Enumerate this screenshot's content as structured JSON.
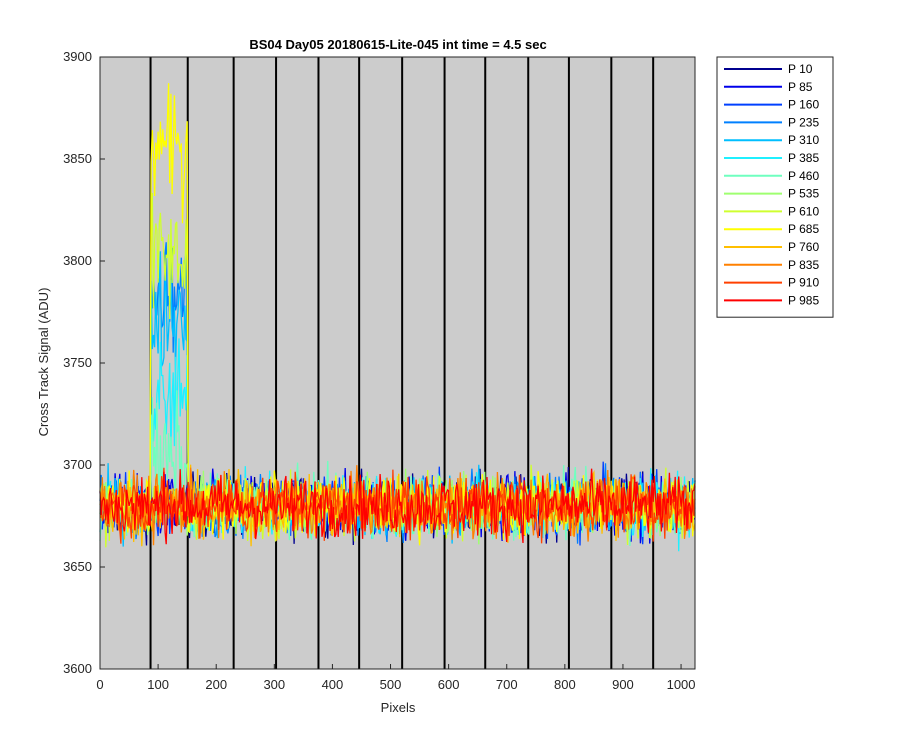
{
  "chart_data": {
    "type": "line",
    "title": "BS04 Day05 20180615-Lite-045 int time = 4.5 sec",
    "xlabel": "Pixels",
    "ylabel": "Cross Track Signal (ADU)",
    "xlim": [
      0,
      1024
    ],
    "ylim": [
      3600,
      3900
    ],
    "xticks": [
      0,
      100,
      200,
      300,
      400,
      500,
      600,
      700,
      800,
      900,
      1000
    ],
    "yticks": [
      3600,
      3650,
      3700,
      3750,
      3800,
      3850,
      3900
    ],
    "xtick_labels": [
      "0",
      "100",
      "200",
      "300",
      "400",
      "500",
      "600",
      "700",
      "800",
      "900",
      "1000"
    ],
    "ytick_labels": [
      "3600",
      "3650",
      "3700",
      "3750",
      "3800",
      "3850",
      "3900"
    ],
    "background": "#cccccc",
    "vertical_lines_x": [
      87,
      151,
      230,
      303,
      376,
      446,
      520,
      593,
      663,
      737,
      807,
      880,
      952
    ],
    "legend_placement": "outside-right",
    "noise_profile": {
      "baseline": 3680,
      "spread": 15,
      "bump_x_range": [
        87,
        151
      ],
      "bump_series_levels": {
        "P 235": 3780,
        "P 310": 3775,
        "P 385": 3730,
        "P 460": 3700,
        "P 610": 3800,
        "P 685": 3855
      }
    },
    "series": [
      {
        "name": "P 10",
        "color": "#00008f"
      },
      {
        "name": "P 85",
        "color": "#0000ea"
      },
      {
        "name": "P 160",
        "color": "#0040ff"
      },
      {
        "name": "P 235",
        "color": "#0080ff"
      },
      {
        "name": "P 310",
        "color": "#00bfff"
      },
      {
        "name": "P 385",
        "color": "#1ff0ff"
      },
      {
        "name": "P 460",
        "color": "#6fffbf"
      },
      {
        "name": "P 535",
        "color": "#9fff70"
      },
      {
        "name": "P 610",
        "color": "#cfff30"
      },
      {
        "name": "P 685",
        "color": "#ffff00"
      },
      {
        "name": "P 760",
        "color": "#ffbf00"
      },
      {
        "name": "P 835",
        "color": "#ff8000"
      },
      {
        "name": "P 910",
        "color": "#ff4000"
      },
      {
        "name": "P 985",
        "color": "#ff0000"
      }
    ]
  }
}
